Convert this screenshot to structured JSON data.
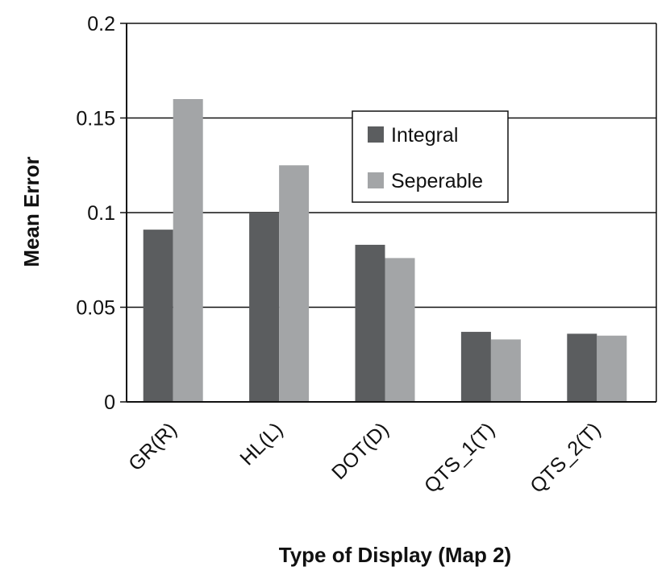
{
  "chart_data": {
    "type": "bar",
    "title": "",
    "xlabel": "Type of Display (Map 2)",
    "ylabel": "Mean Error",
    "categories": [
      "GR(R)",
      "HL(L)",
      "DOT(D)",
      "QTS_1(T)",
      "QTS_2(T)"
    ],
    "series": [
      {
        "name": "Integral",
        "color": "#5b5d5f",
        "values": [
          0.091,
          0.1,
          0.083,
          0.037,
          0.036
        ]
      },
      {
        "name": "Seperable",
        "color": "#a3a5a7",
        "values": [
          0.16,
          0.125,
          0.076,
          0.033,
          0.035
        ]
      }
    ],
    "ylim": [
      0,
      0.2
    ],
    "yticks": [
      "0",
      "0.05",
      "0.1",
      "0.15",
      "0.2"
    ],
    "grid": true,
    "legend_position": "top-center"
  }
}
